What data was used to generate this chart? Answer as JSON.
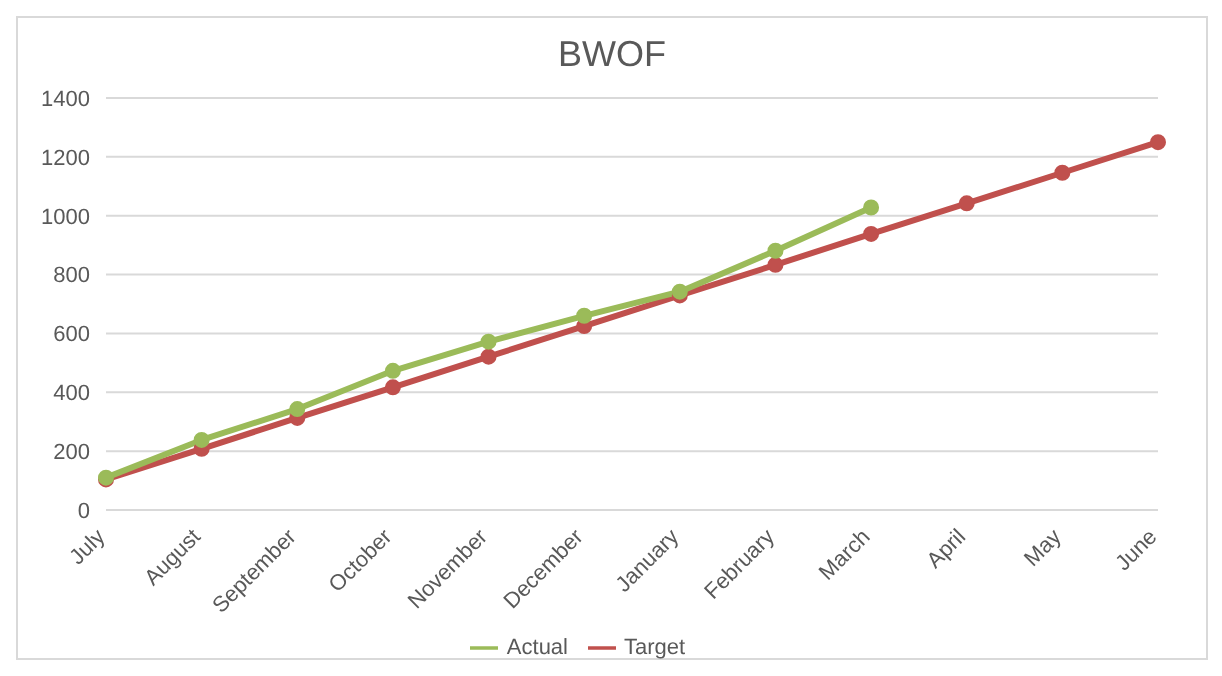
{
  "chart_data": {
    "type": "line",
    "title": "BWOF",
    "categories": [
      "July",
      "August",
      "September",
      "October",
      "November",
      "December",
      "January",
      "February",
      "March",
      "April",
      "May",
      "June"
    ],
    "series": [
      {
        "name": "Target",
        "color": "#c0504d",
        "values": [
          104,
          208,
          313,
          417,
          521,
          625,
          729,
          833,
          938,
          1042,
          1146,
          1250
        ]
      },
      {
        "name": "Actual",
        "color": "#9bbb59",
        "values": [
          110,
          238,
          343,
          473,
          572,
          660,
          742,
          881,
          1028,
          null,
          null,
          null
        ]
      }
    ],
    "ylim": [
      0,
      1400
    ],
    "yticks": [
      0,
      200,
      400,
      600,
      800,
      1000,
      1200,
      1400
    ],
    "grid": "y",
    "legend": "bottom",
    "marker": "circle",
    "line_style": "solid"
  }
}
